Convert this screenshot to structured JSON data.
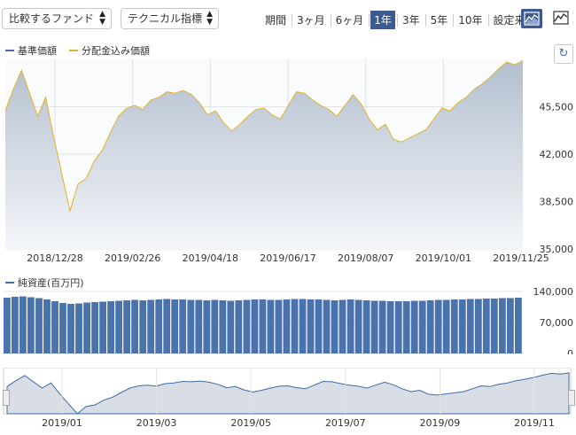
{
  "controls": {
    "fund_select": "比較するファンド",
    "tech_select": "テクニカル指標",
    "period_label": "期間",
    "periods": [
      "3ヶ月",
      "6ヶ月",
      "1年",
      "3年",
      "5年",
      "10年",
      "設定来"
    ],
    "active_period": "1年"
  },
  "colors": {
    "nav": "#3f6aa6",
    "dividend": "#e2b32a",
    "volume": "#4a72ad",
    "accent": "#3c5a8f"
  },
  "legend": {
    "nav": "基準価額",
    "dividend_nav": "分配金込み価額",
    "assets": "純資産(百万円)"
  },
  "icons": {
    "reload": "reload-icon",
    "area_chart": "area-chart-icon",
    "line_chart": "line-chart-icon"
  },
  "chart_data": [
    {
      "type": "area",
      "y_ticks": [
        "45,500",
        "42,000",
        "38,500",
        "35,000"
      ],
      "ylim": [
        35000,
        49000
      ],
      "x_ticks": [
        "2018/12/28",
        "2019/02/26",
        "2019/04/18",
        "2019/06/17",
        "2019/08/07",
        "2019/10/01",
        "2019/11/25"
      ],
      "series": [
        {
          "name": "基準価額",
          "values": [
            45200,
            46800,
            48200,
            46500,
            44800,
            46200,
            43200,
            40500,
            37800,
            39800,
            40200,
            41500,
            42300,
            43600,
            44800,
            45400,
            45600,
            45300,
            46000,
            46200,
            46600,
            46500,
            46700,
            46400,
            45800,
            44900,
            45200,
            44300,
            43700,
            44200,
            44800,
            45300,
            45400,
            44900,
            44600,
            45600,
            46600,
            46500,
            46000,
            45600,
            45300,
            44800,
            45600,
            46400,
            45700,
            44600,
            43800,
            44200,
            43100,
            42900,
            43200,
            43500,
            43800,
            44600,
            45400,
            45200,
            45800,
            46200,
            46800,
            47200,
            47700,
            48300,
            48800,
            48600,
            48900
          ]
        },
        {
          "name": "分配金込み価額",
          "values": [
            45200,
            46800,
            48200,
            46500,
            44800,
            46200,
            43200,
            40500,
            37800,
            39800,
            40200,
            41500,
            42300,
            43600,
            44800,
            45400,
            45600,
            45300,
            46000,
            46200,
            46600,
            46500,
            46700,
            46400,
            45800,
            44900,
            45200,
            44300,
            43700,
            44200,
            44800,
            45300,
            45400,
            44900,
            44600,
            45600,
            46600,
            46500,
            46000,
            45600,
            45300,
            44800,
            45600,
            46400,
            45700,
            44600,
            43800,
            44200,
            43100,
            42900,
            43200,
            43500,
            43800,
            44600,
            45400,
            45200,
            45800,
            46200,
            46800,
            47200,
            47700,
            48300,
            48800,
            48600,
            48900
          ]
        }
      ]
    },
    {
      "type": "bar",
      "y_ticks": [
        "140,000",
        "70,000",
        "0"
      ],
      "ylim": [
        0,
        140000
      ],
      "series": [
        {
          "name": "純資産(百万円)",
          "values": [
            126000,
            128000,
            129000,
            127000,
            125000,
            122000,
            118000,
            114000,
            112000,
            113000,
            115000,
            116000,
            117000,
            118000,
            119000,
            120000,
            121000,
            120000,
            121000,
            122000,
            123000,
            122000,
            122000,
            121000,
            121000,
            120000,
            121000,
            120000,
            119000,
            120000,
            121000,
            122000,
            122000,
            121000,
            121000,
            122000,
            123000,
            123000,
            122000,
            122000,
            121000,
            120000,
            121000,
            122000,
            121000,
            120000,
            119000,
            119000,
            118000,
            118000,
            118000,
            119000,
            119000,
            120000,
            121000,
            121000,
            122000,
            122000,
            123000,
            123000,
            124000,
            124000,
            125000,
            125000,
            126000
          ]
        }
      ]
    },
    {
      "type": "area",
      "x_ticks": [
        "2019/01",
        "2019/03",
        "2019/05",
        "2019/07",
        "2019/09",
        "2019/11"
      ],
      "series": [
        {
          "name": "基準価額",
          "values": [
            45200,
            46800,
            48200,
            46500,
            44800,
            46200,
            43200,
            40500,
            37800,
            39800,
            40200,
            41500,
            42300,
            43600,
            44800,
            45400,
            45600,
            45300,
            46000,
            46200,
            46600,
            46500,
            46700,
            46400,
            45800,
            44900,
            45200,
            44300,
            43700,
            44200,
            44800,
            45300,
            45400,
            44900,
            44600,
            45600,
            46600,
            46500,
            46000,
            45600,
            45300,
            44800,
            45600,
            46400,
            45700,
            44600,
            43800,
            44200,
            43100,
            42900,
            43200,
            43500,
            43800,
            44600,
            45400,
            45200,
            45800,
            46200,
            46800,
            47200,
            47700,
            48300,
            48800,
            48600,
            48900
          ]
        }
      ]
    }
  ]
}
